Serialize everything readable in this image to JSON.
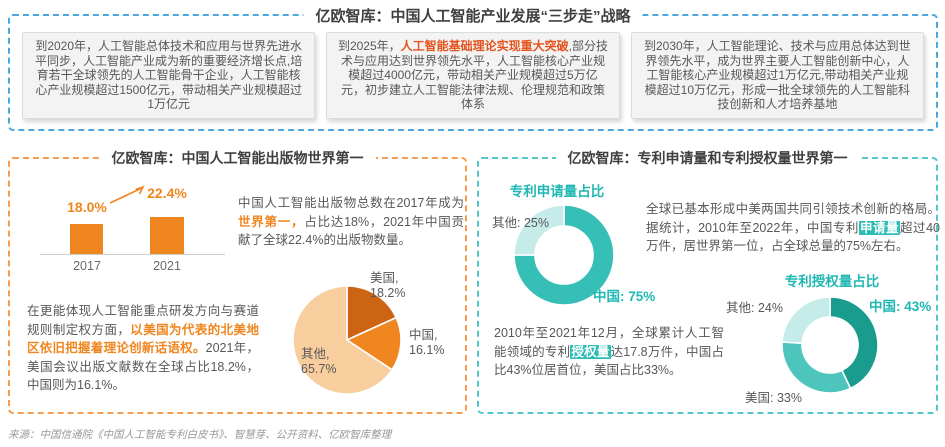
{
  "header": {
    "title": "亿欧智库：中国人工智能产业发展“三步走”战略",
    "milestones": [
      {
        "pre": "到2020年，人工智能总体技术和应用与世界先进水平同步，人工智能产业成为新的重要经济增长点,培育若干全球领先的人工智能骨干企业，人工智能核心产业规模超过1500亿元，带动相关产业规模超过1万亿元",
        "highlight": "",
        "post": ""
      },
      {
        "pre": "到2025年，",
        "highlight": "人工智能基础理论实现重大突破",
        "post": ",部分技术与应用达到世界领先水平，人工智能核心产业规模超过4000亿元，带动相关产业规模超过5万亿元，初步建立人工智能法律法规、伦理规范和政策体系"
      },
      {
        "pre": "到2030年，人工智能理论、技术与应用总体达到世界领先水平，成为世界主要人工智能创新中心，人工智能核心产业规模超过1万亿元,带动相关产业规模超过10万亿元，形成一批全球领先的人工智能科技创新和人才培养基地",
        "highlight": "",
        "post": ""
      }
    ]
  },
  "publications": {
    "title": "亿欧智库：中国人工智能出版物世界第一",
    "para1": {
      "pre": "中国人工智能出版物总数在2017年成为",
      "highlight": "世界第一，",
      "post": "占比达18%，2021年中国贡献了全球22.4%的出版物数量。"
    },
    "para2": {
      "pre": "在更能体现人工智能重点研发方向与赛道规则制定权方面，",
      "highlight": "以美国为代表的北美地区依旧把握着理论创新话语权。",
      "post": "2021年，美国会议出版文献数在全球占比18.2%，中国则为16.1%。"
    }
  },
  "patents": {
    "title": "亿欧智库：专利申请量和专利授权量世界第一",
    "para1": {
      "pre": "全球已基本形成中美两国共同引领技术创新的格局。据统计，2010年至2022年，中国专利",
      "highlight": "申请量",
      "post": "超过40万件，居世界第一位，占全球总量的75%左右。"
    },
    "para2": {
      "pre": "2010年至2021年12月，全球累计人工智能领域的专利",
      "highlight": "授权量",
      "post": "达17.8万件，中国占比43%位居首位，美国占比33%。"
    }
  },
  "chart_data": [
    {
      "type": "bar",
      "categories": [
        "2017",
        "2021"
      ],
      "values": [
        18.0,
        22.4
      ],
      "value_labels": [
        "18.0%",
        "22.4%"
      ],
      "bar_color": "#F0861F",
      "ylabel": "",
      "xlabel": ""
    },
    {
      "type": "pie",
      "slices": [
        {
          "name": "美国",
          "value": 18.2,
          "color": "#CC6414",
          "label": "美国,\n18.2%"
        },
        {
          "name": "中国",
          "value": 16.1,
          "color": "#F0861F",
          "label": "中国,\n16.1%"
        },
        {
          "name": "其他",
          "value": 65.7,
          "color": "#F8CE9F",
          "label": "其他,\n65.7%"
        }
      ]
    },
    {
      "type": "donut",
      "title": "专利申请量占比",
      "slices": [
        {
          "name": "中国",
          "value": 75,
          "color": "#36BFB7",
          "label": "中国: 75%"
        },
        {
          "name": "其他",
          "value": 25,
          "color": "#C6ECEA",
          "label": "其他: 25%"
        }
      ]
    },
    {
      "type": "donut",
      "title": "专利授权量占比",
      "slices": [
        {
          "name": "中国",
          "value": 43,
          "color": "#199C8D",
          "label": "中国: 43%"
        },
        {
          "name": "美国",
          "value": 33,
          "color": "#4DC5BD",
          "label": "美国: 33%"
        },
        {
          "name": "其他",
          "value": 24,
          "color": "#C6ECEA",
          "label": "其他: 24%"
        }
      ]
    }
  ],
  "colors": {
    "accent_blue_dashed": "#4BA7DE",
    "accent_orange": "#F0861F",
    "accent_orange_dashed": "#F59C51",
    "accent_red_orange": "#E5541E",
    "accent_teal": "#1FB8B2",
    "accent_teal_dashed": "#54C6CA",
    "body_text": "#595757",
    "box_background": "#F3F3F3"
  },
  "footer": {
    "source": "来源：中国信通院《中国人工智能专利白皮书》、智慧芽、公开资料、亿欧智库整理"
  }
}
